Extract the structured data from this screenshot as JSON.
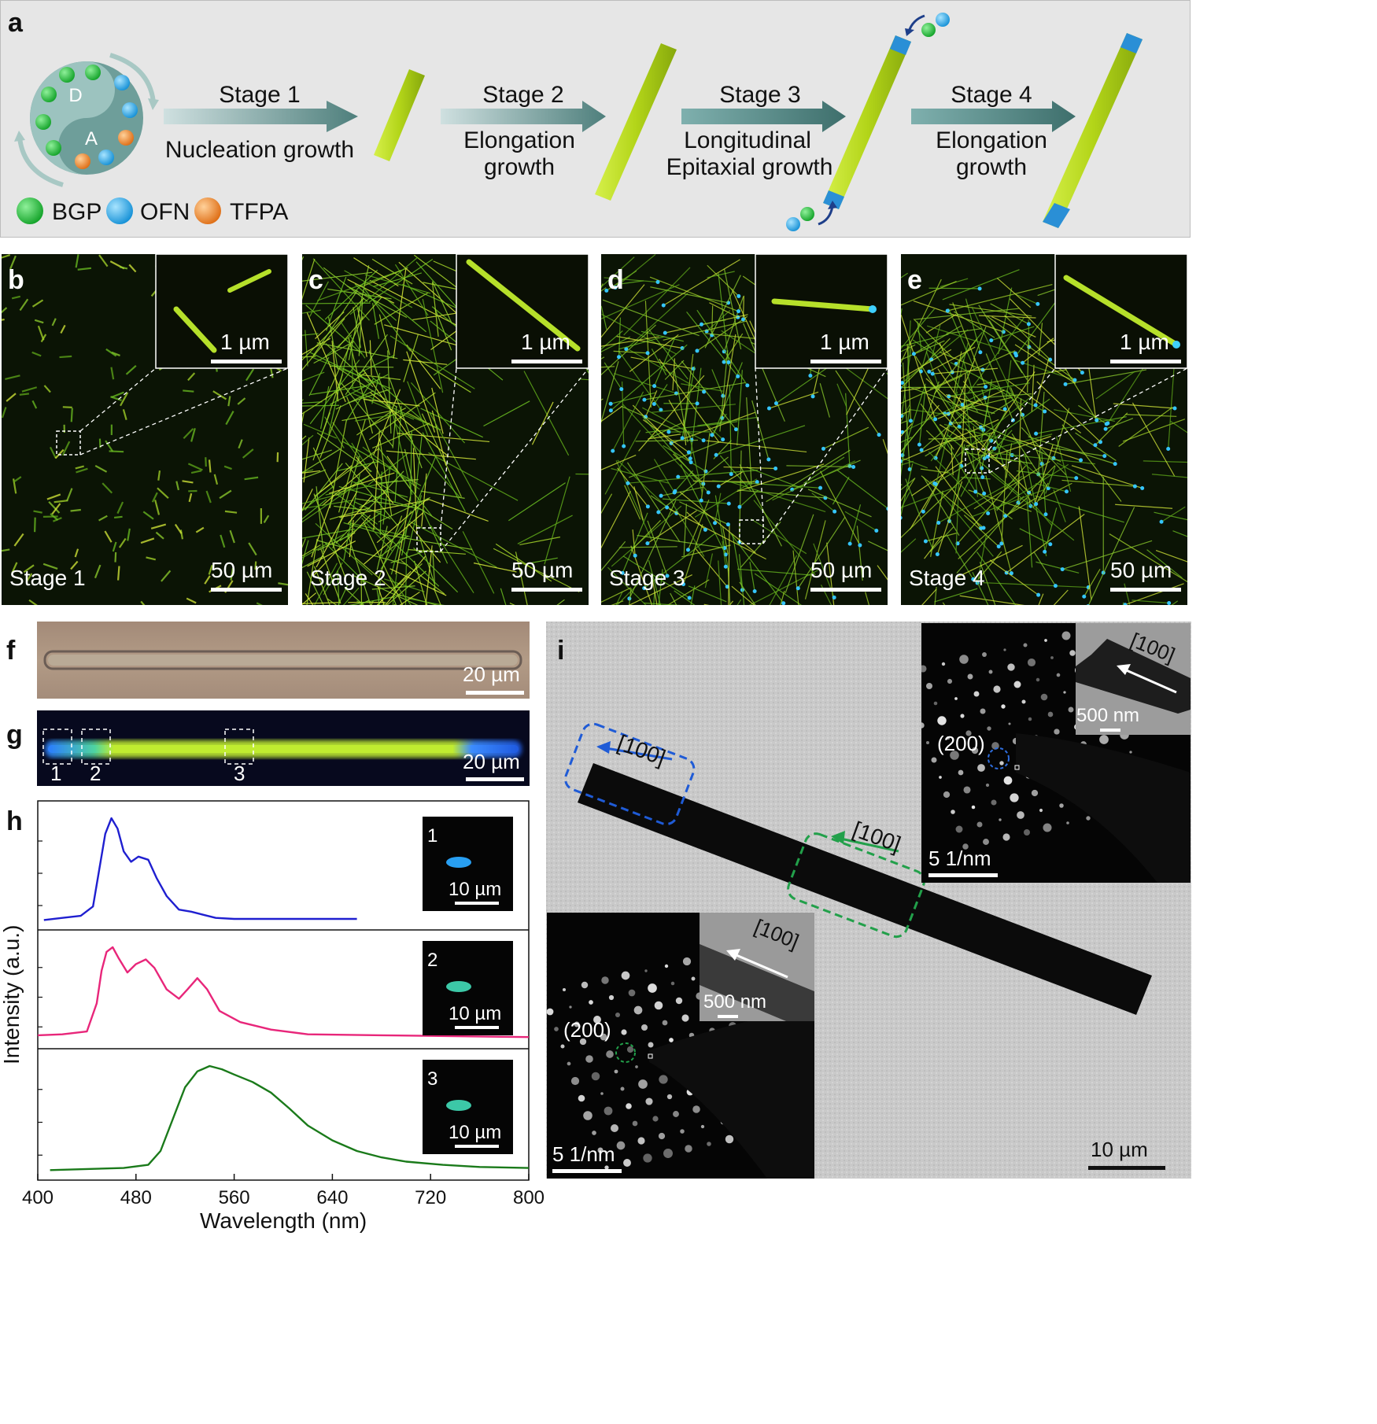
{
  "panel_a": {
    "letter": "a",
    "donor_label": "D",
    "acceptor_label": "A",
    "legend": [
      "BGP",
      "OFN",
      "TFPA"
    ],
    "colors": {
      "BGP": "#2fbf3f",
      "OFN": "#29a3e0",
      "TFPA": "#e8862a",
      "rod": "#b5d81c",
      "rod_tip": "#2a8fd6"
    },
    "stages": [
      {
        "title": "Stage 1",
        "line1": "Nucleation growth",
        "line2": ""
      },
      {
        "title": "Stage 2",
        "line1": "Elongation",
        "line2": "growth"
      },
      {
        "title": "Stage 3",
        "line1": "Longitudinal",
        "line2": "Epitaxial growth"
      },
      {
        "title": "Stage 4",
        "line1": "Elongation",
        "line2": "growth"
      }
    ]
  },
  "fluorescence_panels": [
    {
      "letter": "b",
      "stage": "Stage 1",
      "scale": "50 µm",
      "inset_scale": "1 µm"
    },
    {
      "letter": "c",
      "stage": "Stage 2",
      "scale": "50 µm",
      "inset_scale": "1 µm"
    },
    {
      "letter": "d",
      "stage": "Stage 3",
      "scale": "50 µm",
      "inset_scale": "1 µm"
    },
    {
      "letter": "e",
      "stage": "Stage 4",
      "scale": "50 µm",
      "inset_scale": "1 µm"
    }
  ],
  "panel_f": {
    "letter": "f",
    "scale": "20 µm"
  },
  "panel_g": {
    "letter": "g",
    "scale": "20 µm",
    "regions": [
      "1",
      "2",
      "3"
    ]
  },
  "panel_i": {
    "letter": "i",
    "direction": "[100]",
    "plane": "(200)",
    "saed_scale": "5 1/nm",
    "inset_scale": "500 nm",
    "main_scale": "10 µm"
  },
  "chart_data": {
    "type": "line",
    "letter": "h",
    "xlabel": "Wavelength (nm)",
    "ylabel": "Intensity (a.u.)",
    "xlim": [
      400,
      800
    ],
    "xticks": [
      "400",
      "480",
      "560",
      "640",
      "720",
      "800"
    ],
    "series": [
      {
        "name": "1",
        "color": "#1f1fd0",
        "inset_scale": "10 µm",
        "x": [
          405,
          420,
          435,
          445,
          450,
          455,
          460,
          465,
          470,
          476,
          482,
          490,
          497,
          505,
          515,
          525,
          535,
          545,
          560,
          600,
          640,
          660
        ],
        "y": [
          0.02,
          0.04,
          0.06,
          0.15,
          0.5,
          0.85,
          1.0,
          0.9,
          0.68,
          0.58,
          0.63,
          0.6,
          0.42,
          0.25,
          0.12,
          0.1,
          0.07,
          0.04,
          0.03,
          0.03,
          0.03,
          0.03
        ]
      },
      {
        "name": "2",
        "color": "#e8267a",
        "inset_scale": "10 µm",
        "x": [
          400,
          420,
          440,
          448,
          452,
          456,
          461,
          466,
          473,
          480,
          488,
          495,
          505,
          515,
          522,
          530,
          538,
          548,
          565,
          590,
          620,
          680,
          740,
          800
        ],
        "y": [
          0.06,
          0.07,
          0.1,
          0.4,
          0.75,
          0.95,
          1.0,
          0.88,
          0.73,
          0.82,
          0.87,
          0.78,
          0.55,
          0.45,
          0.55,
          0.67,
          0.55,
          0.32,
          0.2,
          0.12,
          0.07,
          0.06,
          0.05,
          0.04
        ]
      },
      {
        "name": "3",
        "color": "#1a7a1a",
        "inset_scale": "10 µm",
        "x": [
          410,
          440,
          470,
          490,
          500,
          510,
          520,
          530,
          540,
          550,
          560,
          575,
          590,
          605,
          620,
          640,
          660,
          680,
          700,
          730,
          760,
          800
        ],
        "y": [
          0.02,
          0.03,
          0.04,
          0.07,
          0.2,
          0.5,
          0.8,
          0.95,
          1.0,
          0.97,
          0.92,
          0.85,
          0.75,
          0.6,
          0.44,
          0.3,
          0.2,
          0.14,
          0.1,
          0.07,
          0.05,
          0.04
        ]
      }
    ]
  }
}
